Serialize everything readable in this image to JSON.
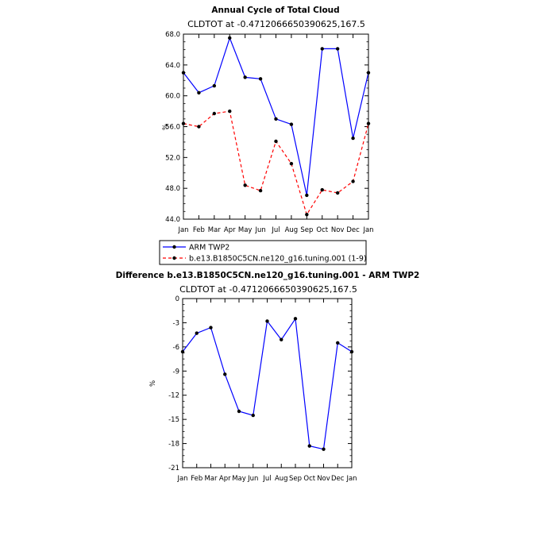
{
  "chart_data": [
    {
      "type": "line",
      "title": "Annual Cycle of Total Cloud",
      "subtitle": "CLDTOT at -0.4712066650390625,167.5",
      "ylabel": "%",
      "xlabel": "",
      "categories": [
        "Jan",
        "Feb",
        "Mar",
        "Apr",
        "May",
        "Jun",
        "Jul",
        "Aug",
        "Sep",
        "Oct",
        "Nov",
        "Dec",
        "Jan"
      ],
      "ylim": [
        44.0,
        68.0
      ],
      "yticks": [
        "44.0",
        "48.0",
        "52.0",
        "56.0",
        "60.0",
        "64.0",
        "68.0"
      ],
      "series": [
        {
          "name": "ARM TWP2",
          "color": "#0000ff",
          "dash": "solid",
          "values": [
            63.0,
            60.4,
            61.3,
            67.5,
            62.4,
            62.2,
            57.0,
            56.3,
            47.1,
            66.1,
            66.1,
            54.5,
            63.0
          ]
        },
        {
          "name": "b.e13.B1850C5CN.ne120_g16.tuning.001 (1-9)",
          "color": "#ff0000",
          "dash": "dashed",
          "values": [
            56.4,
            56.0,
            57.7,
            58.0,
            48.4,
            47.7,
            54.1,
            51.2,
            44.6,
            47.8,
            47.4,
            48.9,
            56.4
          ]
        }
      ],
      "legend_position": "bottom",
      "grid": false
    },
    {
      "type": "line",
      "title": "Difference b.e13.B1850C5CN.ne120_g16.tuning.001 - ARM TWP2",
      "subtitle": "CLDTOT at -0.4712066650390625,167.5",
      "ylabel": "%",
      "xlabel": "",
      "categories": [
        "Jan",
        "Feb",
        "Mar",
        "Apr",
        "May",
        "Jun",
        "Jul",
        "Aug",
        "Sep",
        "Oct",
        "Nov",
        "Dec",
        "Jan"
      ],
      "ylim": [
        -21,
        0
      ],
      "yticks": [
        "0",
        "-3",
        "-6",
        "-9",
        "-12",
        "-15",
        "-18",
        "-21"
      ],
      "series": [
        {
          "color": "#0000ff",
          "dash": "solid",
          "values": [
            -6.6,
            -4.3,
            -3.6,
            -9.4,
            -14.0,
            -14.5,
            -2.8,
            -5.1,
            -2.5,
            -18.3,
            -18.7,
            -5.5,
            -6.6
          ]
        }
      ],
      "grid": false
    }
  ]
}
